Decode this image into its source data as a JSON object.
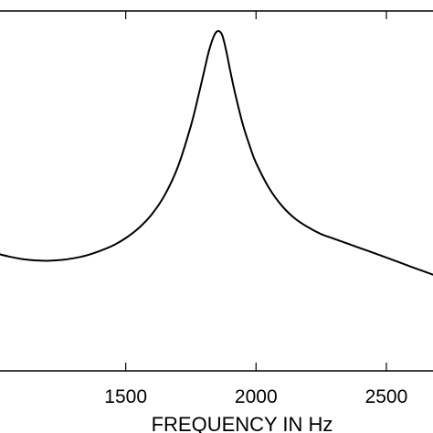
{
  "chart_data": {
    "type": "line",
    "title": "",
    "xlabel": "FREQUENCY IN Hz",
    "ylabel": "",
    "xlim": [
      1000,
      2700
    ],
    "ylim": [
      0,
      1
    ],
    "x_ticks": [
      1500,
      2000,
      2500
    ],
    "x_tick_labels": [
      "1500",
      "2000",
      "2500"
    ],
    "grid": false,
    "series": [
      {
        "x": [
          1000,
          1050,
          1100,
          1150,
          1200,
          1250,
          1300,
          1350,
          1400,
          1450,
          1500,
          1550,
          1600,
          1650,
          1700,
          1750,
          1780,
          1800,
          1820,
          1840,
          1855,
          1870,
          1885,
          1900,
          1920,
          1950,
          1980,
          2000,
          2050,
          2100,
          2150,
          2200,
          2250,
          2300,
          2400,
          2500,
          2600,
          2700
        ],
        "y": [
          0.327,
          0.318,
          0.311,
          0.307,
          0.306,
          0.308,
          0.313,
          0.321,
          0.333,
          0.348,
          0.369,
          0.397,
          0.435,
          0.489,
          0.567,
          0.681,
          0.768,
          0.83,
          0.891,
          0.933,
          0.944,
          0.933,
          0.891,
          0.837,
          0.77,
          0.683,
          0.616,
          0.578,
          0.508,
          0.458,
          0.423,
          0.399,
          0.38,
          0.367,
          0.341,
          0.315,
          0.288,
          0.262
        ]
      }
    ]
  }
}
